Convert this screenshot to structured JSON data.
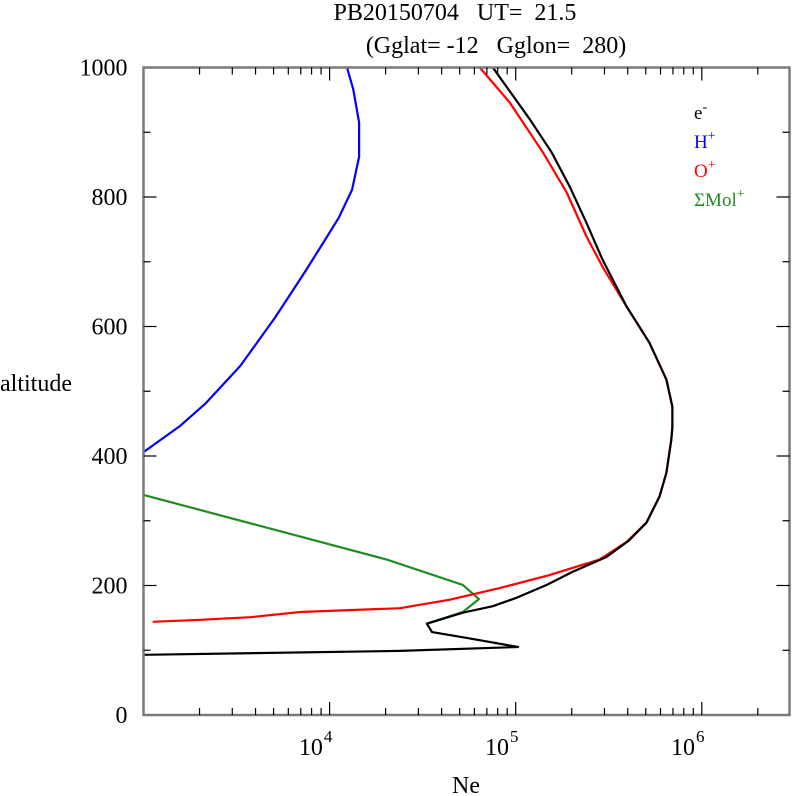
{
  "chart_data": {
    "type": "line",
    "title_line1": "PB20150704   UT=  21.5",
    "title_line2": "(Gglat= -12   Gglon=  280)",
    "xlabel": "Ne",
    "ylabel": "altitude",
    "xscale": "log",
    "xlim": [
      1000,
      2960000
    ],
    "ylim": [
      0,
      1000
    ],
    "grid": false,
    "legend_position": "top-right",
    "y_ticks": [
      {
        "value": 0,
        "label": "0"
      },
      {
        "value": 200,
        "label": "200"
      },
      {
        "value": 400,
        "label": "400"
      },
      {
        "value": 600,
        "label": "600"
      },
      {
        "value": 800,
        "label": "800"
      },
      {
        "value": 1000,
        "label": "1000"
      }
    ],
    "y_minor_ticks": [
      100,
      300,
      500,
      700,
      900
    ],
    "x_ticks": [
      {
        "value": 10000,
        "base": "10",
        "exp": "4"
      },
      {
        "value": 100000,
        "base": "10",
        "exp": "5"
      },
      {
        "value": 1000000,
        "base": "10",
        "exp": "6"
      }
    ],
    "series": [
      {
        "name": "e-",
        "legend_base": "e",
        "legend_sup": "-",
        "color": "#000000",
        "points": [
          [
            75300,
            1000
          ],
          [
            119000,
            920
          ],
          [
            156000,
            869
          ],
          [
            195000,
            816
          ],
          [
            240000,
            760
          ],
          [
            293000,
            703
          ],
          [
            394000,
            631
          ],
          [
            523000,
            575
          ],
          [
            645000,
            518
          ],
          [
            695000,
            476
          ],
          [
            695000,
            445
          ],
          [
            686000,
            425
          ],
          [
            645000,
            374
          ],
          [
            592000,
            337
          ],
          [
            504000,
            297
          ],
          [
            408000,
            270
          ],
          [
            307000,
            244
          ],
          [
            202000,
            221
          ],
          [
            147000,
            201
          ],
          [
            101000,
            181
          ],
          [
            75300,
            168
          ],
          [
            52000,
            158
          ],
          [
            33300,
            141
          ],
          [
            35500,
            128
          ],
          [
            54600,
            119
          ],
          [
            103000,
            105
          ],
          [
            23900,
            99
          ],
          [
            1000,
            93
          ]
        ]
      },
      {
        "name": "H+",
        "legend_base": "H",
        "legend_sup": "+",
        "color": "#0000ff",
        "points": [
          [
            12400,
            1000
          ],
          [
            13400,
            966
          ],
          [
            14400,
            915
          ],
          [
            14400,
            862
          ],
          [
            13200,
            811
          ],
          [
            11200,
            768
          ],
          [
            9230,
            729
          ],
          [
            7390,
            685
          ],
          [
            5100,
            614
          ],
          [
            3310,
            539
          ],
          [
            2150,
            481
          ],
          [
            1580,
            447
          ],
          [
            1000,
            406
          ]
        ]
      },
      {
        "name": "O+",
        "legend_base": "O",
        "legend_sup": "+",
        "color": "#ff0000",
        "points": [
          [
            64100,
            1000
          ],
          [
            92900,
            946
          ],
          [
            140000,
            869
          ],
          [
            188000,
            807
          ],
          [
            240000,
            739
          ],
          [
            293000,
            692
          ],
          [
            394000,
            631
          ],
          [
            523000,
            575
          ],
          [
            645000,
            518
          ],
          [
            695000,
            476
          ],
          [
            695000,
            445
          ],
          [
            686000,
            425
          ],
          [
            645000,
            374
          ],
          [
            592000,
            337
          ],
          [
            504000,
            297
          ],
          [
            394000,
            267
          ],
          [
            282000,
            240
          ],
          [
            152000,
            216
          ],
          [
            82000,
            196
          ],
          [
            44300,
            178
          ],
          [
            23900,
            165
          ],
          [
            6950,
            159
          ],
          [
            3750,
            151
          ],
          [
            2020,
            147
          ],
          [
            1120,
            144
          ]
        ]
      },
      {
        "name": "ΣMol+",
        "legend_base": "ΣMol",
        "legend_sup": "+",
        "color": "#228b22",
        "points": [
          [
            1000,
            340
          ],
          [
            20300,
            240
          ],
          [
            52000,
            201
          ],
          [
            63400,
            179
          ],
          [
            52000,
            159
          ],
          [
            33300,
            141
          ]
        ]
      }
    ]
  }
}
